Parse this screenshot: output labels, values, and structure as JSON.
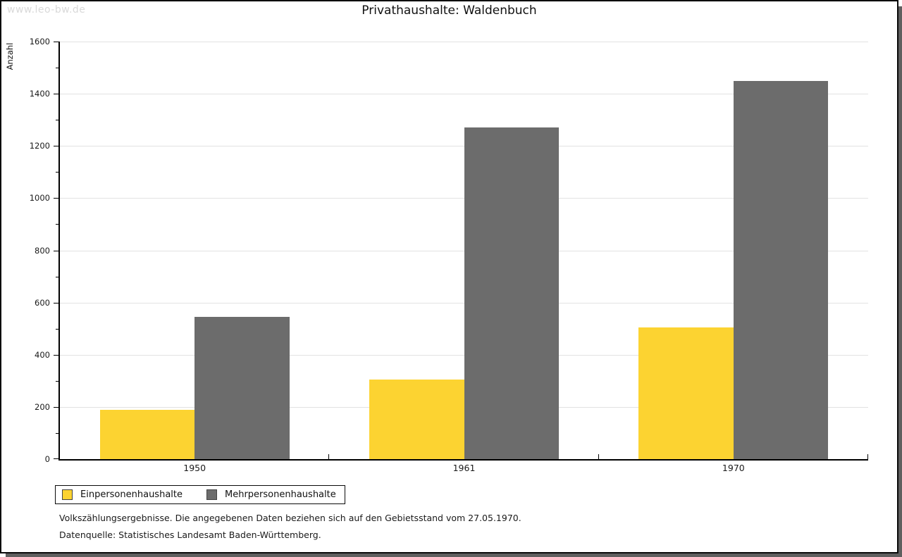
{
  "watermark": "www.leo-bw.de",
  "chart_data": {
    "type": "bar",
    "title": "Privathaushalte: Waldenbuch",
    "ylabel": "Anzahl",
    "xlabel": "",
    "categories": [
      "1950",
      "1961",
      "1970"
    ],
    "series": [
      {
        "name": "Einpersonenhaushalte",
        "color": "#FCD331",
        "values": [
          190,
          305,
          505
        ]
      },
      {
        "name": "Mehrpersonenhaushalte",
        "color": "#6C6C6C",
        "values": [
          545,
          1270,
          1450
        ]
      }
    ],
    "ylim": [
      0,
      1600
    ],
    "ytick_major_step": 200,
    "ytick_minor_step": 100,
    "grid": true,
    "legend_position": "bottom-left"
  },
  "footer": {
    "line1": "Volkszählungsergebnisse. Die angegebenen Daten beziehen sich auf den Gebietsstand vom 27.05.1970.",
    "line2": "Datenquelle: Statistisches Landesamt Baden-Württemberg."
  },
  "colors": {
    "accent_yellow": "#FCD331",
    "accent_gray": "#6C6C6C",
    "gridline": "#E2E2E2",
    "axis": "#000000",
    "watermark": "#D9D9D9",
    "frame_shadow": "#5F5F5F"
  }
}
